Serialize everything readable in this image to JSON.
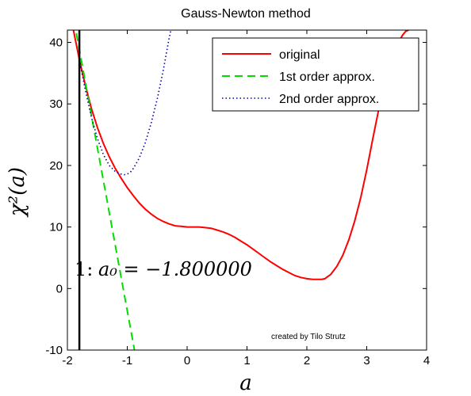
{
  "chart_data": {
    "type": "line",
    "title": "Gauss-Newton method",
    "xlabel": "a",
    "ylabel": "χ²(a)",
    "xlim": [
      -2,
      4
    ],
    "ylim": [
      -10,
      42
    ],
    "xticks": [
      -2,
      -1,
      0,
      1,
      2,
      3,
      4
    ],
    "yticks": [
      -10,
      0,
      10,
      20,
      30,
      40
    ],
    "grid": false,
    "legend_position": "top-right",
    "series": [
      {
        "name": "original",
        "color": "#ff0000",
        "style": "solid",
        "x": [
          -1.9,
          -1.8,
          -1.7,
          -1.6,
          -1.5,
          -1.4,
          -1.3,
          -1.2,
          -1.1,
          -1.0,
          -0.9,
          -0.8,
          -0.7,
          -0.6,
          -0.5,
          -0.4,
          -0.3,
          -0.2,
          -0.1,
          0.0,
          0.1,
          0.2,
          0.3,
          0.4,
          0.5,
          0.6,
          0.7,
          0.8,
          0.9,
          1.0,
          1.1,
          1.2,
          1.3,
          1.4,
          1.5,
          1.6,
          1.7,
          1.8,
          1.9,
          2.0,
          2.1,
          2.2,
          2.25,
          2.3,
          2.4,
          2.5,
          2.6,
          2.7,
          2.8,
          2.9,
          3.0,
          3.1,
          3.2,
          3.3,
          3.4,
          3.5,
          3.6,
          3.65,
          3.7
        ],
        "y": [
          42.0,
          37.2,
          33.0,
          29.3,
          26.2,
          23.6,
          21.4,
          19.5,
          17.9,
          16.4,
          15.1,
          13.9,
          12.9,
          12.1,
          11.4,
          10.9,
          10.5,
          10.2,
          10.1,
          10.0,
          10.0,
          10.0,
          9.9,
          9.8,
          9.5,
          9.2,
          8.8,
          8.3,
          7.7,
          7.1,
          6.4,
          5.7,
          5.0,
          4.3,
          3.7,
          3.1,
          2.6,
          2.1,
          1.8,
          1.6,
          1.5,
          1.5,
          1.5,
          1.6,
          2.3,
          3.6,
          5.4,
          7.9,
          11.0,
          14.8,
          19.3,
          24.3,
          29.1,
          33.5,
          37.0,
          39.5,
          41.2,
          41.8,
          42.0
        ]
      },
      {
        "name": "1st order approx.",
        "color": "#00dd00",
        "style": "dashed",
        "x": [
          -1.85,
          -0.88
        ],
        "y": [
          41.5,
          -10.0
        ]
      },
      {
        "name": "2nd order approx.",
        "color": "#0000aa",
        "style": "dotted",
        "x": [
          -1.8,
          -1.7,
          -1.6,
          -1.5,
          -1.4,
          -1.3,
          -1.2,
          -1.1,
          -1.05,
          -1.0,
          -0.95,
          -0.9,
          -0.8,
          -0.7,
          -0.6,
          -0.5,
          -0.4,
          -0.3,
          -0.27
        ],
        "y": [
          37.2,
          32.2,
          27.9,
          24.4,
          21.8,
          20.0,
          19.0,
          18.6,
          18.5,
          18.6,
          18.9,
          19.5,
          21.2,
          23.7,
          26.9,
          30.8,
          35.4,
          40.7,
          42.0
        ]
      }
    ],
    "vertical_line": {
      "x": -1.8,
      "color": "#000000"
    },
    "annotations": [
      {
        "prefix": "1: ",
        "text": "a₀ = −1.800000",
        "x": -1.9,
        "y": 3.3
      }
    ],
    "credit": "created by Tilo Strutz"
  }
}
